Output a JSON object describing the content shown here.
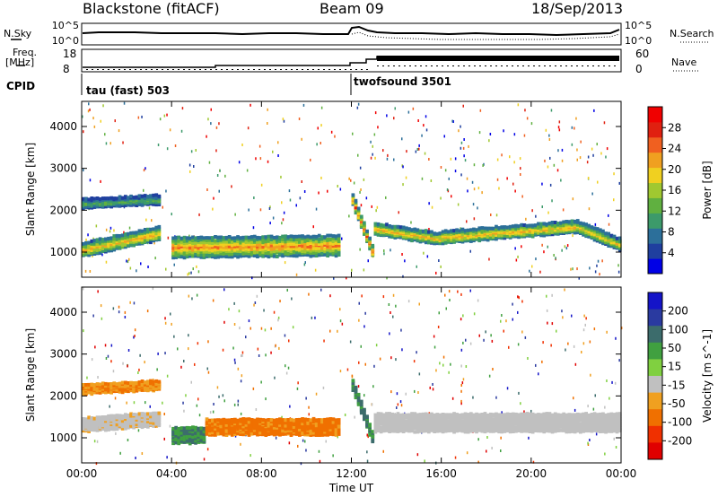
{
  "header": {
    "station": "Blackstone (fitACF)",
    "beam": "Beam 09",
    "date": "18/Sep/2013"
  },
  "strip": {
    "nsky_label": "N.Sky",
    "nsearch_label": "N.Search",
    "noise_ticks": [
      "10^5",
      "10^0"
    ],
    "freq_label_1": "Freq.",
    "freq_label_2": "[MHz]",
    "freq_ticks": [
      "18",
      "8"
    ],
    "nave_label": "Nave",
    "nave_ticks": [
      "60",
      "0"
    ],
    "cpid_label": "CPID",
    "cpid_segments": [
      {
        "name": "tau (fast) 503",
        "start_hour": 0.0
      },
      {
        "name": "twofsound 3501",
        "start_hour": 12.0
      }
    ]
  },
  "chart_data": [
    {
      "type": "heatmap",
      "title": "",
      "xlabel": "Time UT",
      "ylabel": "Slant Range [km]",
      "xlim": [
        0,
        24
      ],
      "ylim": [
        400,
        4600
      ],
      "x_ticks": [
        "00:00",
        "04:00",
        "08:00",
        "12:00",
        "16:00",
        "20:00",
        "00:00"
      ],
      "y_ticks": [
        1000,
        2000,
        3000,
        4000
      ],
      "colorbar": {
        "label": "Power [dB]",
        "ticks": [
          4,
          8,
          12,
          16,
          20,
          24,
          28
        ],
        "range": [
          0,
          32
        ],
        "colors": [
          "#0000e6",
          "#1f3f9f",
          "#2c6f9a",
          "#3c9a6a",
          "#60b040",
          "#a0c830",
          "#f0d020",
          "#f0a020",
          "#f06020",
          "#e02010",
          "#f00000"
        ]
      },
      "echo_bands": [
        {
          "x": [
            0.0,
            3.5
          ],
          "range_center_start": 1100,
          "range_center_end": 1500,
          "width": 300,
          "level": 22
        },
        {
          "x": [
            0.0,
            3.5
          ],
          "range_center_start": 2200,
          "range_center_end": 2300,
          "width": 200,
          "level": 12
        },
        {
          "x": [
            4.0,
            11.5
          ],
          "range_center_start": 1150,
          "range_center_end": 1200,
          "width": 450,
          "level": 24
        },
        {
          "x": [
            12.0,
            13.0
          ],
          "range_center_start": 2300,
          "range_center_end": 900,
          "width": 250,
          "level": 26
        },
        {
          "x": [
            13.0,
            16.0
          ],
          "range_center_start": 1600,
          "range_center_end": 1350,
          "width": 250,
          "level": 22
        },
        {
          "x": [
            16.0,
            22.0
          ],
          "range_center_start": 1400,
          "range_center_end": 1650,
          "width": 260,
          "level": 22
        },
        {
          "x": [
            22.0,
            24.0
          ],
          "range_center_start": 1650,
          "range_center_end": 1200,
          "width": 260,
          "level": 20
        }
      ]
    },
    {
      "type": "heatmap",
      "title": "",
      "xlabel": "Time UT",
      "ylabel": "Slant Range [km]",
      "xlim": [
        0,
        24
      ],
      "ylim": [
        400,
        4600
      ],
      "x_ticks": [
        "00:00",
        "04:00",
        "08:00",
        "12:00",
        "16:00",
        "20:00",
        "00:00"
      ],
      "y_ticks": [
        1000,
        2000,
        3000,
        4000
      ],
      "colorbar": {
        "label": "Velocity [m s^-1]",
        "ticks": [
          "200",
          "100",
          "50",
          "15",
          "-15",
          "-50",
          "-100",
          "-200"
        ],
        "colors": [
          "#1414c8",
          "#2a3aa0",
          "#3c6c6c",
          "#40a040",
          "#80d040",
          "#c0c0c0",
          "#f0a020",
          "#f07000",
          "#f03000",
          "#e00000"
        ]
      },
      "echo_bands": [
        {
          "x": [
            0.0,
            3.5
          ],
          "range_center_start": 1350,
          "range_center_end": 1500,
          "width": 300,
          "velocity": -5
        },
        {
          "x": [
            0.0,
            3.5
          ],
          "range_center_start": 2200,
          "range_center_end": 2300,
          "width": 200,
          "velocity": -30
        },
        {
          "x": [
            4.0,
            5.5
          ],
          "range_center_start": 1100,
          "range_center_end": 1100,
          "width": 350,
          "velocity": 30
        },
        {
          "x": [
            5.5,
            11.5
          ],
          "range_center_start": 1300,
          "range_center_end": 1300,
          "width": 350,
          "velocity": -40
        },
        {
          "x": [
            12.0,
            13.0
          ],
          "range_center_start": 2300,
          "range_center_end": 900,
          "width": 250,
          "velocity": 40
        },
        {
          "x": [
            13.0,
            24.0
          ],
          "range_center_start": 1400,
          "range_center_end": 1400,
          "width": 400,
          "velocity": 0
        }
      ]
    }
  ]
}
